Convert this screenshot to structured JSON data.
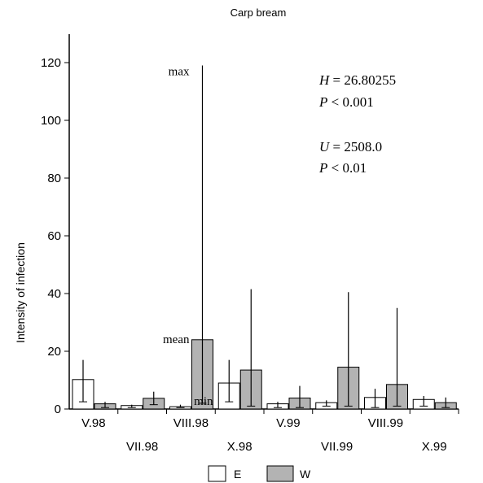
{
  "chart_data": {
    "type": "bar",
    "title": "Carp bream",
    "ylabel": "Intensity of infection",
    "xlabel": "",
    "ylim": [
      0,
      130
    ],
    "yticks": [
      0,
      20,
      40,
      60,
      80,
      100,
      120
    ],
    "categories": [
      "V.98",
      "VII.98",
      "VIII.98",
      "X.98",
      "V.99",
      "VII.99",
      "VIII.99",
      "X.99"
    ],
    "series": [
      {
        "name": "E",
        "color": "#ffffff",
        "mean": [
          10.2,
          1.2,
          0.8,
          9.0,
          1.8,
          2.2,
          4.0,
          3.3
        ],
        "min": [
          2.5,
          0.5,
          0.5,
          2.5,
          0.5,
          1.0,
          0.5,
          1.0
        ],
        "max": [
          17.0,
          1.5,
          1.5,
          17.0,
          2.5,
          3.0,
          7.0,
          4.5
        ]
      },
      {
        "name": "W",
        "color": "#b3b3b3",
        "mean": [
          1.8,
          3.7,
          24.0,
          13.5,
          3.8,
          14.5,
          8.5,
          2.2
        ],
        "min": [
          0.5,
          1.5,
          2.0,
          1.0,
          0.5,
          1.0,
          1.0,
          0.5
        ],
        "max": [
          2.5,
          6.0,
          119.0,
          41.5,
          8.0,
          40.5,
          35.0,
          4.0
        ]
      }
    ],
    "stats": {
      "H_label": "H",
      "H_value": " = 26.80255",
      "P1_label": "P",
      "P1_value": " < 0.001",
      "U_label": "U",
      "U_value": " = 2508.0",
      "P2_label": "P",
      "P2_value": " < 0.01"
    },
    "annotations": {
      "max": "max",
      "mean": "mean",
      "min": "min"
    },
    "legend": {
      "position": "bottom",
      "labels": [
        "E",
        "W"
      ]
    },
    "grid": false
  }
}
